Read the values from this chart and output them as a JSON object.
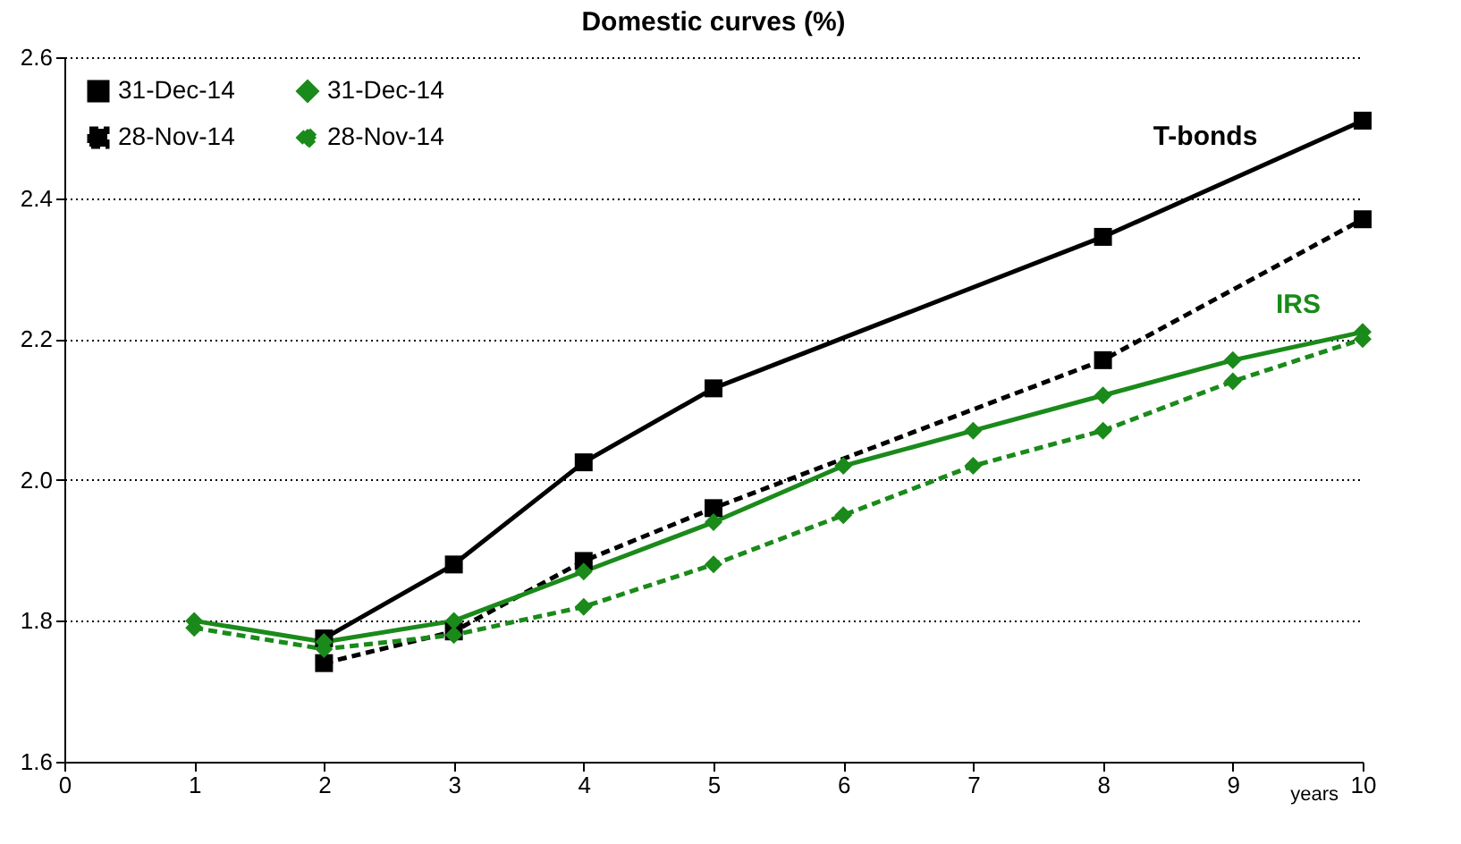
{
  "chart_data": {
    "type": "line",
    "title": "Domestic curves (%)",
    "xlabel": "years",
    "xlim": [
      0,
      10
    ],
    "xticks": [
      0,
      1,
      2,
      3,
      4,
      5,
      6,
      7,
      8,
      9,
      10
    ],
    "ylim": [
      1.6,
      2.6
    ],
    "yticks": [
      1.6,
      1.8,
      {
        "value": 2,
        "label": "2.0"
      },
      2.2,
      2.4,
      2.6
    ],
    "grid": "y",
    "legend": "top left",
    "series": [
      {
        "name": "31-Dec-14",
        "color": "#000000",
        "marker": "square",
        "line_style": "solid",
        "x": [
          2,
          3,
          4,
          5,
          8,
          10
        ],
        "values": [
          1.775,
          1.88,
          2.025,
          2.13,
          2.345,
          2.51
        ]
      },
      {
        "name": "28-Nov-14",
        "color": "#000000",
        "marker": "square",
        "line_style": "dashed",
        "x": [
          2,
          3,
          4,
          5,
          8,
          10
        ],
        "values": [
          1.74,
          1.785,
          1.885,
          1.96,
          2.17,
          2.37
        ]
      },
      {
        "name": "31-Dec-14",
        "color": "#1a8a1a",
        "marker": "diamond",
        "line_style": "solid",
        "x": [
          1,
          2,
          3,
          4,
          5,
          6,
          7,
          8,
          9,
          10
        ],
        "values": [
          1.8,
          1.77,
          1.8,
          1.87,
          1.94,
          2.02,
          2.07,
          2.12,
          2.17,
          2.21
        ]
      },
      {
        "name": "28-Nov-14",
        "color": "#1a8a1a",
        "marker": "diamond",
        "line_style": "dashed",
        "x": [
          1,
          2,
          3,
          4,
          5,
          6,
          7,
          8,
          9,
          10
        ],
        "values": [
          1.79,
          1.76,
          1.78,
          1.82,
          1.88,
          1.95,
          2.02,
          2.07,
          2.14,
          2.2
        ]
      }
    ],
    "annotations": [
      "T-bonds",
      "IRS"
    ]
  }
}
